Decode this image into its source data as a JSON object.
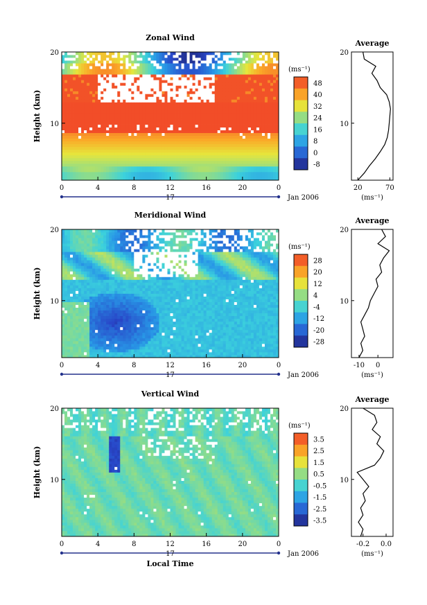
{
  "figure": {
    "xlabel_bottom": "Local Time",
    "date_label": "Jan 2006",
    "day_label": "17"
  },
  "chart_data": [
    {
      "type": "heatmap",
      "title": "Zonal Wind",
      "xlabel": "",
      "ylabel": "Height (km)",
      "x_ticks": [
        "0",
        "4",
        "8",
        "12",
        "16",
        "20",
        "0"
      ],
      "y_ticks": [
        "10",
        "20"
      ],
      "xlim": [
        0,
        24
      ],
      "ylim": [
        2,
        20
      ],
      "colorbar": {
        "unit": "(ms⁻¹)",
        "ticks": [
          "48",
          "40",
          "32",
          "24",
          "16",
          "8",
          "0",
          "-8"
        ],
        "range": [
          -8,
          52
        ]
      },
      "profile": {
        "title": "Average",
        "x_ticks": [
          "20",
          "70"
        ],
        "xlim": [
          10,
          75
        ],
        "unit": "(ms⁻¹)",
        "heights": [
          2,
          3,
          4,
          5,
          6,
          7,
          8,
          9,
          10,
          11,
          12,
          13,
          14,
          15,
          16,
          17,
          18,
          19,
          20
        ],
        "values": [
          20,
          30,
          38,
          47,
          55,
          62,
          66,
          68,
          69,
          70,
          71,
          69,
          65,
          55,
          50,
          42,
          48,
          30,
          28
        ]
      }
    },
    {
      "type": "heatmap",
      "title": "Meridional Wind",
      "xlabel": "",
      "ylabel": "Height (km)",
      "x_ticks": [
        "0",
        "4",
        "8",
        "12",
        "16",
        "20",
        "0"
      ],
      "y_ticks": [
        "10",
        "20"
      ],
      "xlim": [
        0,
        24
      ],
      "ylim": [
        2,
        20
      ],
      "colorbar": {
        "unit": "(ms⁻¹)",
        "ticks": [
          "28",
          "20",
          "12",
          "4",
          "-4",
          "-12",
          "-20",
          "-28"
        ],
        "range": [
          -32,
          32
        ]
      },
      "profile": {
        "title": "Average",
        "x_ticks": [
          "-10",
          "0"
        ],
        "xlim": [
          -14,
          8
        ],
        "unit": "(ms⁻¹)",
        "heights": [
          2,
          3,
          4,
          5,
          6,
          7,
          8,
          9,
          10,
          11,
          12,
          13,
          14,
          15,
          16,
          17,
          18,
          19,
          20
        ],
        "values": [
          -10,
          -8,
          -9,
          -7,
          -8,
          -9,
          -7,
          -5,
          -4,
          -2,
          0,
          -1,
          2,
          1,
          3,
          6,
          0,
          4,
          2
        ]
      }
    },
    {
      "type": "heatmap",
      "title": "Vertical Wind",
      "xlabel": "Local Time",
      "ylabel": "Height (km)",
      "x_ticks": [
        "0",
        "4",
        "8",
        "12",
        "16",
        "20",
        "0"
      ],
      "y_ticks": [
        "10",
        "20"
      ],
      "xlim": [
        0,
        24
      ],
      "ylim": [
        2,
        20
      ],
      "colorbar": {
        "unit": "(ms⁻¹)",
        "ticks": [
          "3.5",
          "2.5",
          "1.5",
          "0.5",
          "-0.5",
          "-1.5",
          "-2.5",
          "-3.5"
        ],
        "range": [
          -4,
          4
        ]
      },
      "profile": {
        "title": "Average",
        "x_ticks": [
          "-0.2",
          "0.0"
        ],
        "xlim": [
          -0.3,
          0.06
        ],
        "unit": "(ms⁻¹)",
        "heights": [
          2,
          3,
          4,
          5,
          6,
          7,
          8,
          9,
          10,
          11,
          12,
          13,
          14,
          15,
          16,
          17,
          18,
          19,
          20
        ],
        "values": [
          -0.22,
          -0.2,
          -0.24,
          -0.2,
          -0.22,
          -0.18,
          -0.2,
          -0.15,
          -0.2,
          -0.25,
          -0.1,
          -0.05,
          -0.02,
          -0.08,
          -0.05,
          -0.12,
          -0.08,
          -0.1,
          -0.2
        ]
      }
    }
  ]
}
